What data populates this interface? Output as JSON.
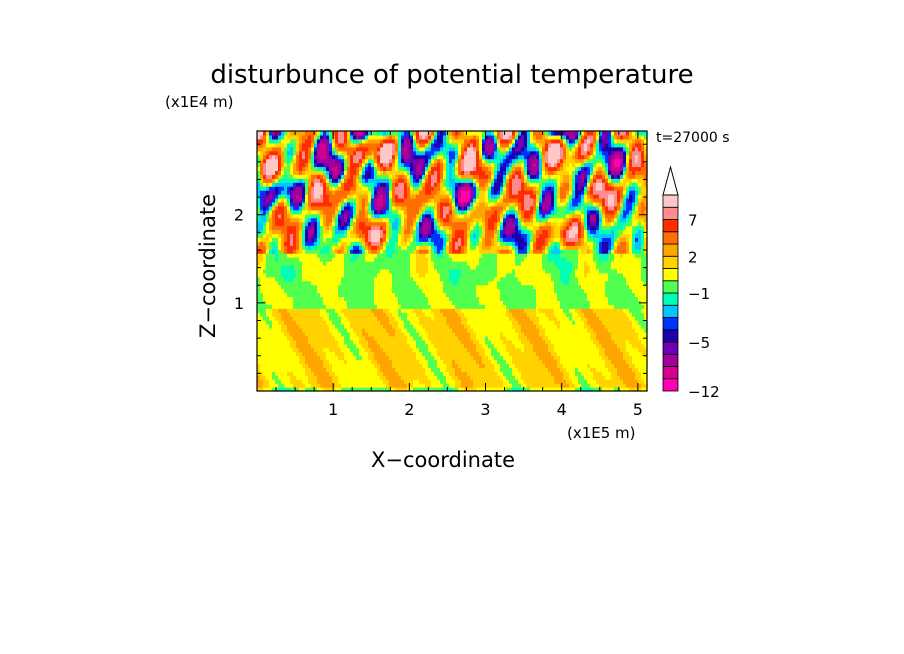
{
  "chart_data": {
    "type": "heatmap",
    "title": "disturbunce of potential temperature",
    "xlabel": "X−coordinate",
    "ylabel": "Z−coordinate",
    "x_unit": "(x1E5 m)",
    "y_unit": "(x1E4 m)",
    "time_annotation": "t=27000 s",
    "xlim": [
      0,
      5.12
    ],
    "ylim": [
      0,
      2.95
    ],
    "x_ticks": [
      1,
      2,
      3,
      4,
      5
    ],
    "x_tick_labels": [
      "1",
      "2",
      "3",
      "4",
      "5"
    ],
    "y_ticks": [
      1,
      2
    ],
    "y_tick_labels": [
      "1",
      "2"
    ],
    "colorbar": {
      "levels": [
        -12,
        -10,
        -8,
        -6,
        -5,
        -4,
        -3,
        -2,
        -1,
        0,
        1,
        2,
        3,
        5,
        7,
        9,
        12
      ],
      "tick_values": [
        -12,
        -5,
        -1,
        2,
        7
      ],
      "tick_labels": [
        "−12",
        "−5",
        "−1",
        "2",
        "7"
      ],
      "colors": [
        "#ff00b4",
        "#d2008c",
        "#a0009b",
        "#6e00b4",
        "#1e00aa",
        "#0032ff",
        "#00c8ff",
        "#00ffb4",
        "#50ff50",
        "#ffff00",
        "#ffd200",
        "#ffa500",
        "#ff6e00",
        "#ff2d00",
        "#ff8c8c",
        "#ffc8c8"
      ],
      "extend_top": true
    },
    "field_description_by_height": [
      {
        "z_range": [
          0,
          0.95
        ],
        "dominant_values": [
          0,
          2
        ],
        "note": "yellow/orange"
      },
      {
        "z_range": [
          0.95,
          1.5
        ],
        "dominant_values": [
          -1,
          1
        ],
        "note": "green band"
      },
      {
        "z_range": [
          1.5,
          2.95
        ],
        "dominant_values": [
          -8,
          9
        ],
        "note": "mixed strong disturbances"
      }
    ]
  }
}
